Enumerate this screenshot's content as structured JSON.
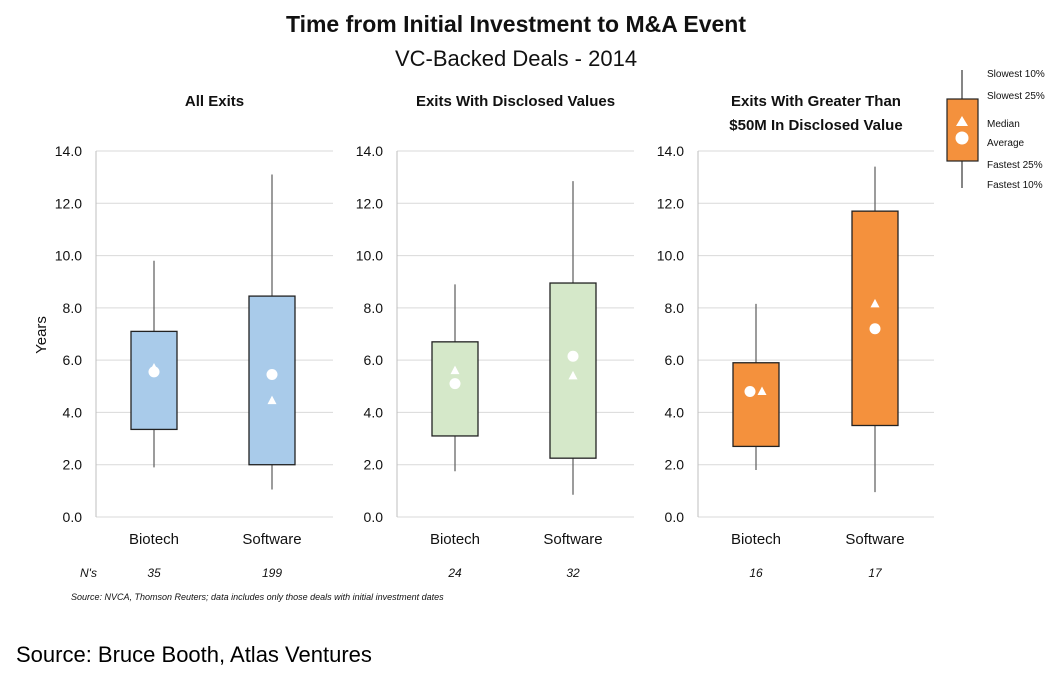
{
  "title": "Time from Initial Investment to M&A Event",
  "subtitle": "VC-Backed Deals - 2014",
  "ylabel": "Years",
  "n_label": "N's",
  "source_note": "Source: NVCA, Thomson Reuters; data includes only those deals with initial investment dates",
  "footer": "Source: Bruce Booth, Atlas Ventures",
  "legend": {
    "slowest10": "Slowest 10%",
    "slowest25": "Slowest 25%",
    "median": "Median",
    "average": "Average",
    "fastest25": "Fastest 25%",
    "fastest10": "Fastest 10%",
    "color": "#f4913d"
  },
  "chart_data": [
    {
      "type": "box",
      "title": "All Exits",
      "title_lines": [
        "All Exits"
      ],
      "ylim": [
        0,
        14
      ],
      "yticks": [
        "0.0",
        "2.0",
        "4.0",
        "6.0",
        "8.0",
        "10.0",
        "12.0",
        "14.0"
      ],
      "fill": "#a9cbea",
      "categories": [
        "Biotech",
        "Software"
      ],
      "n": [
        "35",
        "199"
      ],
      "boxes": [
        {
          "whisker_low": 1.9,
          "q1": 3.35,
          "q3": 7.1,
          "whisker_high": 9.8,
          "median": 5.7,
          "average": 5.55
        },
        {
          "whisker_low": 1.05,
          "q1": 2.0,
          "q3": 8.45,
          "whisker_high": 13.1,
          "median": 4.45,
          "average": 5.45
        }
      ]
    },
    {
      "type": "box",
      "title": "Exits With Disclosed Values",
      "title_lines": [
        "Exits With Disclosed Values"
      ],
      "ylim": [
        0,
        14
      ],
      "yticks": [
        "0.0",
        "2.0",
        "4.0",
        "6.0",
        "8.0",
        "10.0",
        "12.0",
        "14.0"
      ],
      "fill": "#d5e8c9",
      "categories": [
        "Biotech",
        "Software"
      ],
      "n": [
        "24",
        "32"
      ],
      "boxes": [
        {
          "whisker_low": 1.75,
          "q1": 3.1,
          "q3": 6.7,
          "whisker_high": 8.9,
          "median": 5.6,
          "average": 5.1
        },
        {
          "whisker_low": 0.85,
          "q1": 2.25,
          "q3": 8.95,
          "whisker_high": 12.85,
          "median": 5.4,
          "average": 6.15
        }
      ]
    },
    {
      "type": "box",
      "title": "Exits With Greater Than $50M In Disclosed Value",
      "title_lines": [
        "Exits With Greater Than",
        "$50M In Disclosed Value"
      ],
      "ylim": [
        0,
        14
      ],
      "yticks": [
        "0.0",
        "2.0",
        "4.0",
        "6.0",
        "8.0",
        "10.0",
        "12.0",
        "14.0"
      ],
      "fill": "#f4913d",
      "categories": [
        "Biotech",
        "Software"
      ],
      "n": [
        "16",
        "17"
      ],
      "boxes": [
        {
          "whisker_low": 1.8,
          "q1": 2.7,
          "q3": 5.9,
          "whisker_high": 8.15,
          "median": 4.8,
          "average": 4.8
        },
        {
          "whisker_low": 0.95,
          "q1": 3.5,
          "q3": 11.7,
          "whisker_high": 13.4,
          "median": 8.15,
          "average": 7.2
        }
      ]
    }
  ]
}
